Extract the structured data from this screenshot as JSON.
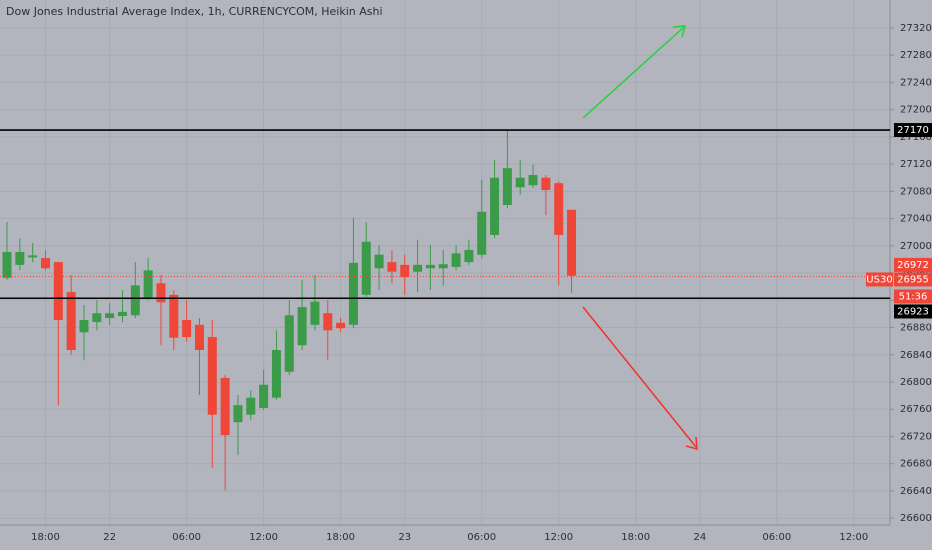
{
  "chart_data": {
    "type": "candlestick",
    "title": "Dow Jones Industrial Average Index, 1h, CURRENCYCOM, Heikin Ashi",
    "categories": [
      null,
      null,
      null,
      "18:00",
      null,
      null,
      null,
      null,
      "22",
      null,
      null,
      null,
      null,
      null,
      "06:00",
      null,
      null,
      null,
      null,
      null,
      "12:00",
      null,
      null,
      null,
      null,
      null,
      "18:00",
      null,
      null,
      null,
      null,
      "23",
      null,
      null,
      null,
      null,
      null,
      "06:00",
      null,
      null,
      null,
      null,
      null,
      "12:00",
      null,
      null,
      null,
      null,
      null,
      "18:00",
      null,
      null,
      null,
      null,
      "24",
      null,
      null,
      null,
      null,
      null,
      "06:00",
      null,
      null,
      null,
      null,
      null,
      "12:00",
      null,
      null
    ],
    "open": [
      26953,
      26972,
      26983,
      26982,
      26976,
      26932,
      26873,
      26888,
      26894,
      26897,
      26898,
      26923,
      26945,
      26928,
      26891,
      26884,
      26866,
      26806,
      26741,
      26752,
      26762,
      26777,
      26815,
      26854,
      26884,
      26901,
      26887,
      26884,
      26928,
      26967,
      26976,
      26972,
      26962,
      26967,
      26967,
      26969,
      26976,
      26987,
      27016,
      27060,
      27086,
      27089,
      27100,
      27092,
      27053,
      null,
      null,
      null,
      null,
      null,
      null,
      null,
      null,
      null,
      null,
      null,
      null,
      null,
      null,
      null,
      null,
      null,
      null,
      null,
      null,
      null,
      null,
      null,
      null
    ],
    "high": [
      27035,
      27011,
      27004,
      26994,
      26976,
      26957,
      26913,
      26920,
      26916,
      26935,
      26976,
      26982,
      26957,
      26935,
      26920,
      26894,
      26891,
      26810,
      26781,
      26788,
      26818,
      26876,
      26920,
      26950,
      26957,
      26920,
      26894,
      27041,
      27035,
      27001,
      26994,
      26987,
      27009,
      27001,
      26994,
      27001,
      27009,
      27097,
      27126,
      27170,
      27126,
      27119,
      27104,
      27094,
      27053,
      null,
      null,
      null,
      null,
      null,
      null,
      null,
      null,
      null,
      null,
      null,
      null,
      null,
      null,
      null,
      null,
      null,
      null,
      null,
      null,
      null,
      null,
      null,
      null
    ],
    "low": [
      26950,
      26964,
      26976,
      26964,
      26766,
      26840,
      26832,
      26876,
      26884,
      26888,
      26894,
      26920,
      26854,
      26847,
      26859,
      26781,
      26674,
      26641,
      26693,
      26744,
      26759,
      26774,
      26810,
      26847,
      26876,
      26832,
      26873,
      26879,
      26925,
      26935,
      26945,
      26928,
      26932,
      26935,
      26942,
      26964,
      26972,
      26982,
      27011,
      27055,
      27075,
      27085,
      27045,
      26942,
      26931,
      null,
      null,
      null,
      null,
      null,
      null,
      null,
      null,
      null,
      null,
      null,
      null,
      null,
      null,
      null,
      null,
      null,
      null,
      null,
      null,
      null,
      null,
      null,
      null
    ],
    "close": [
      26991,
      26991,
      26986,
      26967,
      26891,
      26847,
      26891,
      26901,
      26901,
      26903,
      26942,
      26964,
      26917,
      26865,
      26866,
      26847,
      26752,
      26722,
      26766,
      26777,
      26796,
      26847,
      26898,
      26910,
      26918,
      26876,
      26879,
      26975,
      27006,
      26987,
      26962,
      26954,
      26972,
      26972,
      26973,
      26989,
      26994,
      27050,
      27100,
      27114,
      27100,
      27104,
      27082,
      27016,
      26956,
      null,
      null,
      null,
      null,
      null,
      null,
      null,
      null,
      null,
      null,
      null,
      null,
      null,
      null,
      null,
      null,
      null,
      null,
      null,
      null,
      null,
      null,
      null,
      null
    ],
    "up_color": "#3b9b48",
    "down_color": "#ef4638",
    "ylim": [
      26590,
      27361
    ],
    "yticks": [
      26600,
      26640,
      26680,
      26720,
      26760,
      26800,
      26840,
      26880,
      26920,
      26960,
      27000,
      27040,
      27080,
      27120,
      27160,
      27200,
      27240,
      27280,
      27320
    ],
    "grid": true,
    "levels": [
      27170,
      26923
    ],
    "symbol": "US30",
    "last_price": 26955,
    "marked_price": 26972,
    "countdown": "51:36"
  }
}
